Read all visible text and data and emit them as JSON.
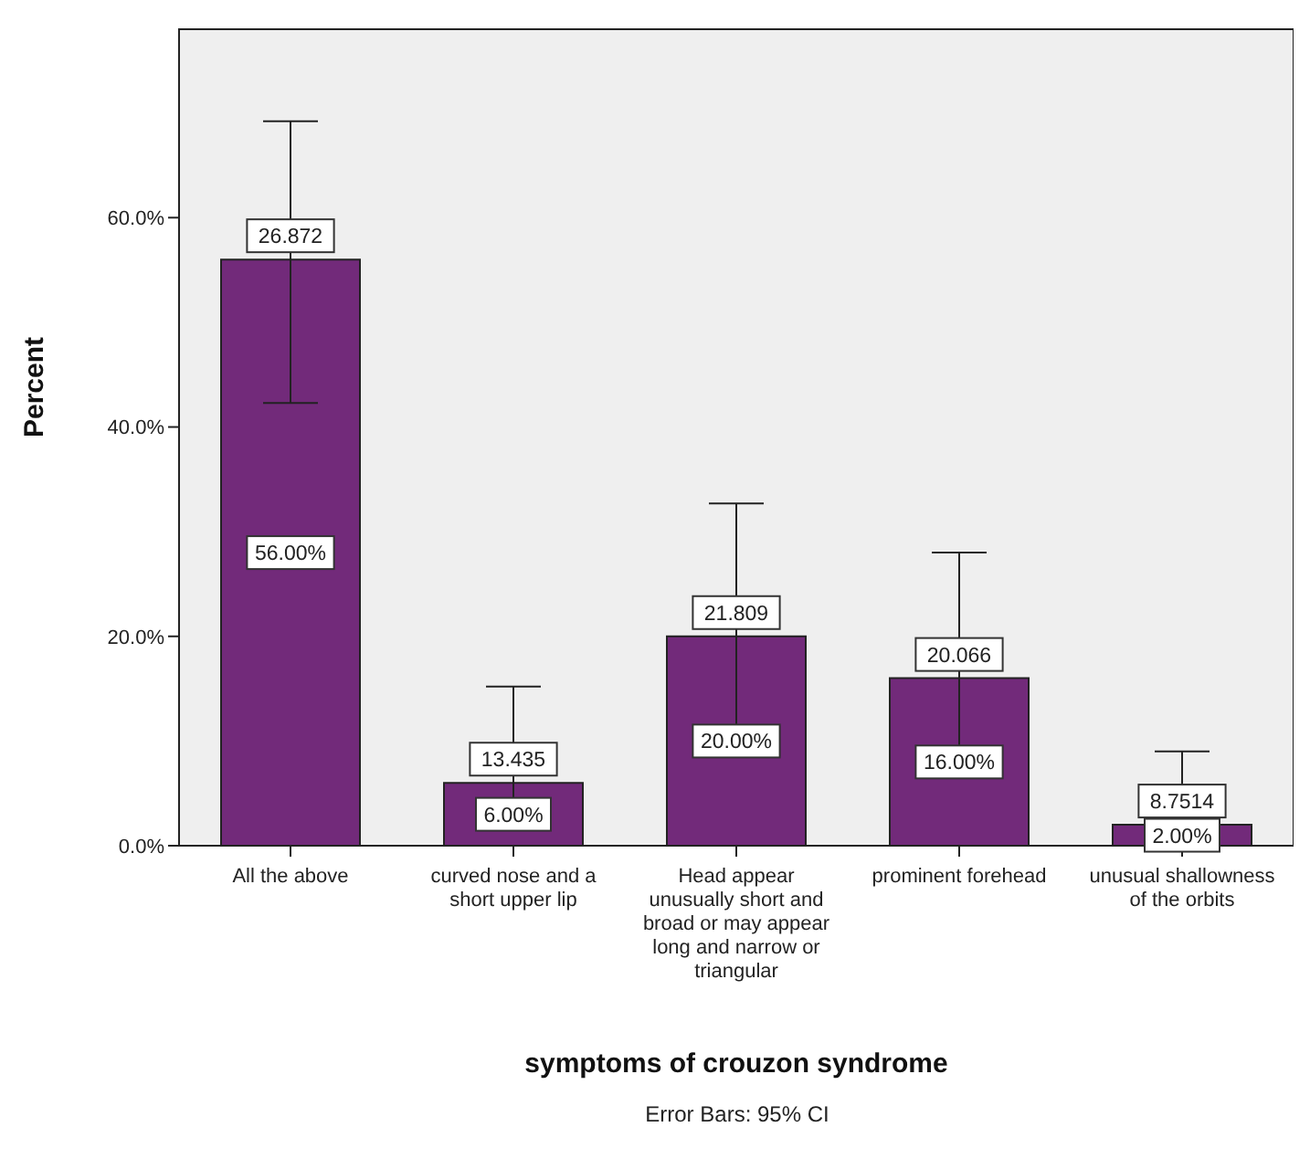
{
  "chart_data": {
    "type": "bar",
    "xlabel": "symptoms of crouzon syndrome",
    "ylabel": "Percent",
    "categories": [
      "All the above",
      "curved nose and a short upper lip",
      "Head appear unusually short and broad or may appear long and narrow or triangular",
      "prominent forehead",
      "unusual shallowness of the orbits"
    ],
    "values": [
      56,
      6,
      20,
      16,
      2
    ],
    "color": "#722a7a",
    "errors": [
      [
        42.3,
        69.2
      ],
      [
        1.8,
        15.2
      ],
      [
        10.9,
        32.7
      ],
      [
        8.0,
        28.0
      ],
      [
        0.2,
        9.0
      ]
    ],
    "value_labels": [
      "56.00%",
      "6.00%",
      "20.00%",
      "16.00%",
      "2.00%"
    ],
    "ylim": [
      0,
      78
    ],
    "yticks": [
      {
        "value": 0,
        "label": "0.0%"
      },
      {
        "value": 20,
        "label": "20.0%"
      },
      {
        "value": 40,
        "label": "40.0%"
      },
      {
        "value": 60,
        "label": "60.0%"
      }
    ],
    "legend": false,
    "annotations": [
      {
        "text": "26.872",
        "x": "All the above",
        "y": 56
      },
      {
        "text": "13.435",
        "x": "curved nose and a short upper lip",
        "y": 6
      },
      {
        "text": "21.809",
        "x": "Head appear unusually short and broad or may appear long and narrow or triangular",
        "y": 20
      },
      {
        "text": "20.066",
        "x": "prominent forehead",
        "y": 16
      },
      {
        "text": "8.7514",
        "x": "unusual shallowness of the orbits",
        "y": 2
      },
      "Error Bars: 95% CI"
    ]
  }
}
